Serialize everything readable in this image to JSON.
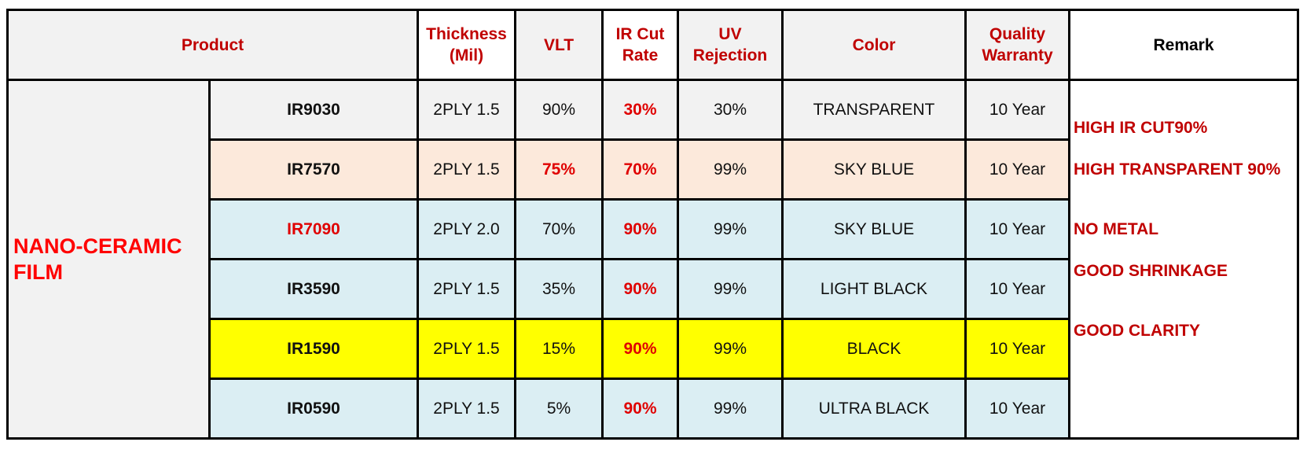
{
  "table": {
    "header": [
      "Product",
      "Thickness\n(Mil)",
      "VLT",
      "IR Cut\nRate",
      "UV\nRejection",
      "Color",
      "Quality\nWarranty",
      "Remark"
    ],
    "group": "NANO-CERAMIC\nFILM",
    "rows": [
      [
        "IR9030",
        "2PLY 1.5",
        "90%",
        "30%",
        "30%",
        "TRANSPARENT",
        "10 Year"
      ],
      [
        "IR7570",
        "2PLY 1.5",
        "75%",
        "70%",
        "99%",
        "SKY BLUE",
        "10 Year"
      ],
      [
        "IR7090",
        "2PLY 2.0",
        "70%",
        "90%",
        "99%",
        "SKY BLUE",
        "10 Year"
      ],
      [
        "IR3590",
        "2PLY 1.5",
        "35%",
        "90%",
        "99%",
        "LIGHT BLACK",
        "10 Year"
      ],
      [
        "IR1590",
        "2PLY 1.5",
        "15%",
        "90%",
        "99%",
        "BLACK",
        "10 Year"
      ],
      [
        "IR0590",
        "2PLY 1.5",
        "5%",
        "90%",
        "99%",
        "ULTRA BLACK",
        "10 Year"
      ]
    ],
    "remarks": [
      "HIGH IR CUT90%",
      "HIGH TRANSPARENT 90%",
      "NO METAL",
      "GOOD SHRINKAGE",
      "GOOD CLARITY"
    ]
  }
}
